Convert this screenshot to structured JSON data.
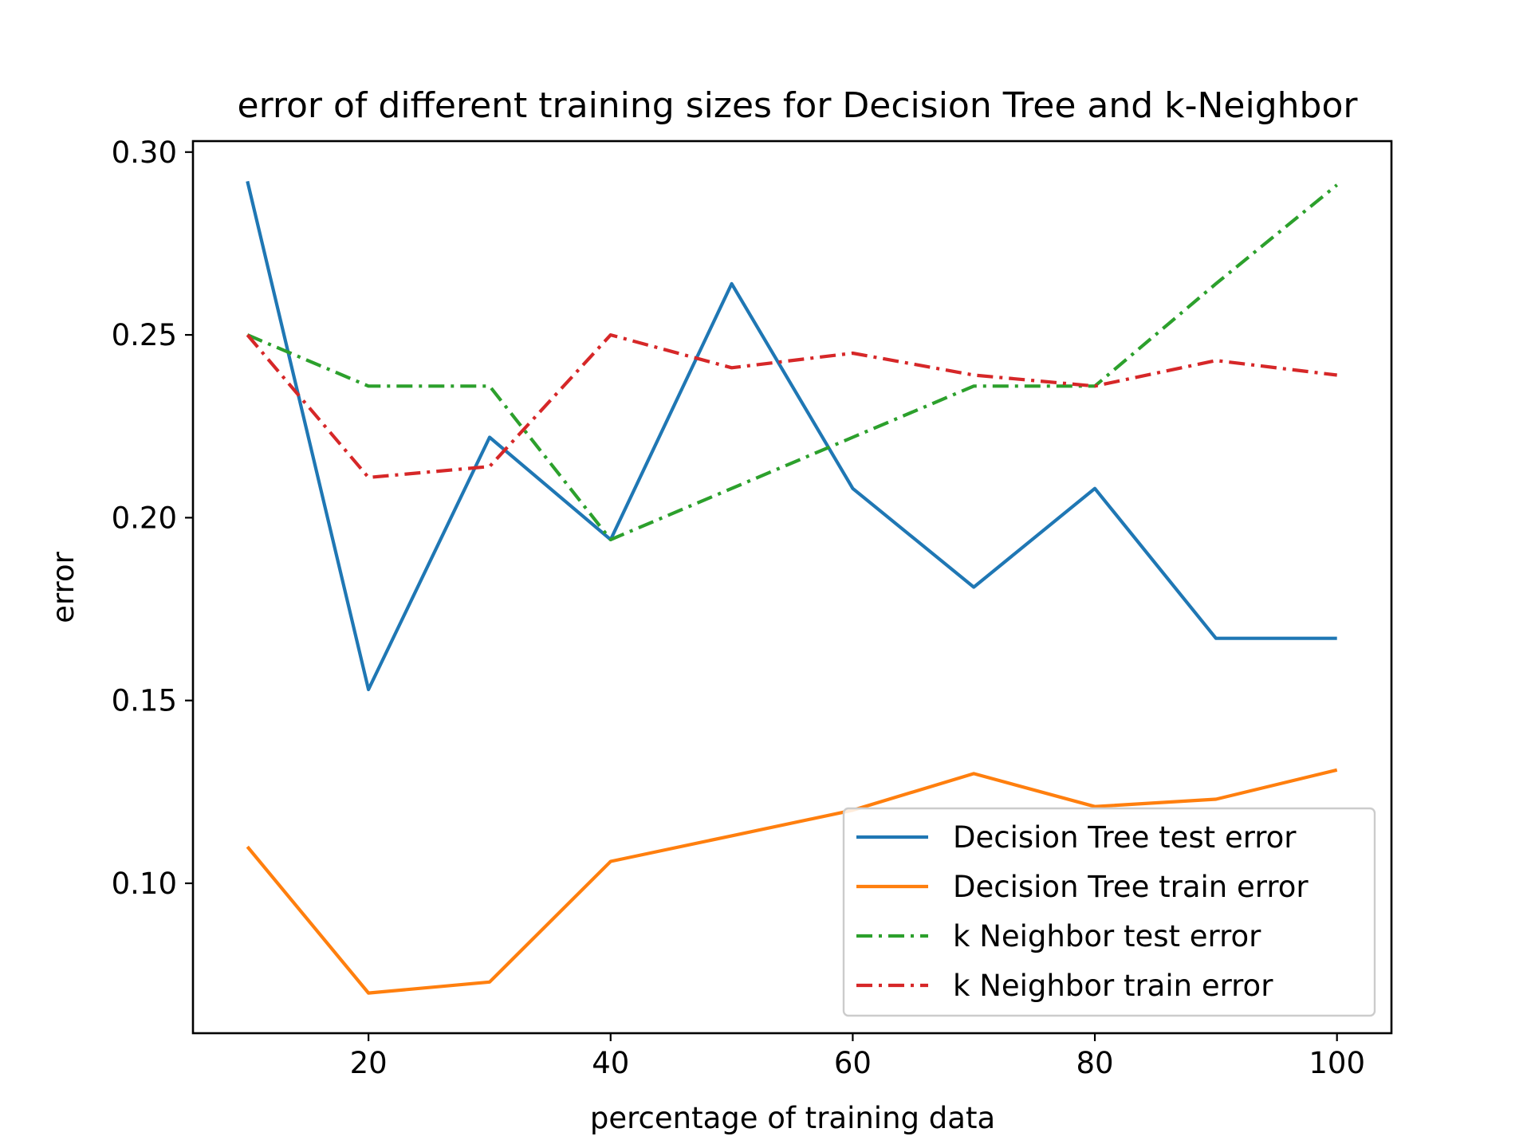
{
  "chart_data": {
    "type": "line",
    "title": "error of different training sizes for Decision Tree and k-Neighbor",
    "xlabel": "percentage of training data",
    "ylabel": "error",
    "xlim": [
      5.5,
      104.5
    ],
    "ylim": [
      0.059,
      0.303
    ],
    "x_ticks": [
      20,
      40,
      60,
      80,
      100
    ],
    "x_tick_labels": [
      "20",
      "40",
      "60",
      "80",
      "100"
    ],
    "y_ticks": [
      0.1,
      0.15,
      0.2,
      0.25,
      0.3
    ],
    "y_tick_labels": [
      "0.10",
      "0.15",
      "0.20",
      "0.25",
      "0.30"
    ],
    "grid": false,
    "legend_position": "lower-right",
    "x": [
      10,
      20,
      30,
      40,
      50,
      60,
      70,
      80,
      90,
      100
    ],
    "series": [
      {
        "name": "Decision Tree test error",
        "color": "#1f77b4",
        "dash": "solid",
        "values": [
          0.292,
          0.153,
          0.222,
          0.194,
          0.264,
          0.208,
          0.181,
          0.208,
          0.167,
          0.167
        ]
      },
      {
        "name": "Decision Tree train error",
        "color": "#ff7f0e",
        "dash": "solid",
        "values": [
          0.11,
          0.07,
          0.073,
          0.106,
          0.113,
          0.12,
          0.13,
          0.121,
          0.123,
          0.131
        ]
      },
      {
        "name": "k Neighbor test error",
        "color": "#2ca02c",
        "dash": "dashdot",
        "values": [
          0.25,
          0.236,
          0.236,
          0.194,
          0.208,
          0.222,
          0.236,
          0.236,
          0.264,
          0.291
        ]
      },
      {
        "name": "k Neighbor train error",
        "color": "#d62728",
        "dash": "dashdot",
        "values": [
          0.25,
          0.211,
          0.214,
          0.25,
          0.241,
          0.245,
          0.239,
          0.236,
          0.243,
          0.239
        ]
      }
    ]
  }
}
